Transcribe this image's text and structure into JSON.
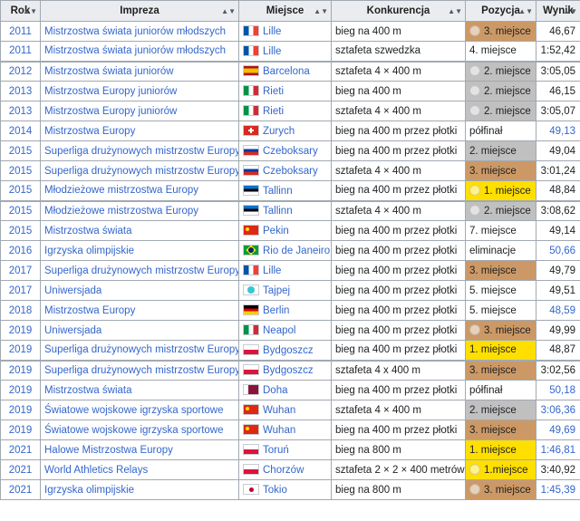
{
  "headers": [
    {
      "label": "Rok"
    },
    {
      "label": "Impreza"
    },
    {
      "label": "Miejsce"
    },
    {
      "label": "Konkurencja"
    },
    {
      "label": "Pozycja"
    },
    {
      "label": "Wynik"
    }
  ],
  "colors": {
    "gold": "#ffdf00",
    "silver": "#c0c0c0",
    "bronze": "#cc9966"
  },
  "rows": [
    {
      "year": "2011",
      "event": "Mistrzostwa świata juniorów młodszych",
      "flag": "f-fr",
      "flag_icon": "france-flag-icon",
      "place": "Lille",
      "competition": "bieg na 400 m",
      "position": "3. miejsce",
      "pos_class": "bronze",
      "medal": true,
      "medal_icon": "bronze-medal-icon",
      "result": "46,67",
      "result_link": false,
      "sep": false
    },
    {
      "year": "2011",
      "event": "Mistrzostwa świata juniorów młodszych",
      "flag": "f-fr",
      "flag_icon": "france-flag-icon",
      "place": "Lille",
      "competition": "sztafeta szwedzka",
      "position": "4. miejsce",
      "pos_class": "none",
      "medal": false,
      "result": "1:52,42",
      "result_link": false,
      "sep": false
    },
    {
      "year": "2012",
      "event": "Mistrzostwa świata juniorów",
      "flag": "f-es",
      "flag_icon": "spain-flag-icon",
      "place": "Barcelona",
      "competition": "sztafeta 4 × 400 m",
      "position": "2. miejsce",
      "pos_class": "silver",
      "medal": true,
      "medal_icon": "silver-medal-icon",
      "result": "3:05,05",
      "result_link": false,
      "sep": true
    },
    {
      "year": "2013",
      "event": "Mistrzostwa Europy juniorów",
      "flag": "f-it",
      "flag_icon": "italy-flag-icon",
      "place": "Rieti",
      "competition": "bieg na 400 m",
      "position": "2. miejsce",
      "pos_class": "silver",
      "medal": true,
      "medal_icon": "silver-medal-icon",
      "result": "46,15",
      "result_link": false,
      "sep": false
    },
    {
      "year": "2013",
      "event": "Mistrzostwa Europy juniorów",
      "flag": "f-it",
      "flag_icon": "italy-flag-icon",
      "place": "Rieti",
      "competition": "sztafeta 4 × 400 m",
      "position": "2. miejsce",
      "pos_class": "silver",
      "medal": true,
      "medal_icon": "silver-medal-icon",
      "result": "3:05,07",
      "result_link": false,
      "sep": false
    },
    {
      "year": "2014",
      "event": "Mistrzostwa Europy",
      "flag": "f-ch",
      "flag_icon": "switzerland-flag-icon",
      "place": "Zurych",
      "competition": "bieg na 400 m przez płotki",
      "position": "półfinał",
      "pos_class": "none",
      "medal": false,
      "result": "49,13",
      "result_link": true,
      "sep": false
    },
    {
      "year": "2015",
      "event": "Superliga drużynowych mistrzostw Europy",
      "flag": "f-ru",
      "flag_icon": "russia-flag-icon",
      "place": "Czeboksary",
      "competition": "bieg na 400 m przez płotki",
      "position": "2. miejsce",
      "pos_class": "silver",
      "medal": false,
      "result": "49,04",
      "result_link": false,
      "sep": false
    },
    {
      "year": "2015",
      "event": "Superliga drużynowych mistrzostw Europy",
      "flag": "f-ru",
      "flag_icon": "russia-flag-icon",
      "place": "Czeboksary",
      "competition": "sztafeta 4 × 400 m",
      "position": "3. miejsce",
      "pos_class": "bronze",
      "medal": false,
      "result": "3:01,24",
      "result_link": false,
      "sep": false
    },
    {
      "year": "2015",
      "event": "Młodzieżowe mistrzostwa Europy",
      "flag": "f-ee",
      "flag_icon": "estonia-flag-icon",
      "place": "Tallinn",
      "competition": "bieg na 400 m przez płotki",
      "position": "1. miejsce",
      "pos_class": "gold",
      "medal": true,
      "medal_icon": "gold-medal-icon",
      "result": "48,84",
      "result_link": false,
      "sep": false
    },
    {
      "year": "2015",
      "event": "Młodzieżowe mistrzostwa Europy",
      "flag": "f-ee",
      "flag_icon": "estonia-flag-icon",
      "place": "Tallinn",
      "competition": "sztafeta 4 × 400 m",
      "position": "2. miejsce",
      "pos_class": "silver",
      "medal": true,
      "medal_icon": "silver-medal-icon",
      "result": "3:08,62",
      "result_link": false,
      "sep": true
    },
    {
      "year": "2015",
      "event": "Mistrzostwa świata",
      "flag": "f-cn",
      "flag_icon": "china-flag-icon",
      "place": "Pekin",
      "competition": "bieg na 400 m przez płotki",
      "position": "7. miejsce",
      "pos_class": "none",
      "medal": false,
      "result": "49,14",
      "result_link": false,
      "sep": false
    },
    {
      "year": "2016",
      "event": "Igrzyska olimpijskie",
      "flag": "f-br",
      "flag_icon": "brazil-flag-icon",
      "place": "Rio de Janeiro",
      "competition": "bieg na 400 m przez płotki",
      "position": "eliminacje",
      "pos_class": "none",
      "medal": false,
      "result": "50,66",
      "result_link": true,
      "sep": false
    },
    {
      "year": "2017",
      "event": "Superliga drużynowych mistrzostw Europy",
      "flag": "f-fr",
      "flag_icon": "france-flag-icon",
      "place": "Lille",
      "competition": "bieg na 400 m przez płotki",
      "position": "3. miejsce",
      "pos_class": "bronze",
      "medal": false,
      "result": "49,79",
      "result_link": false,
      "sep": false
    },
    {
      "year": "2017",
      "event": "Uniwersjada",
      "flag": "f-tw",
      "flag_icon": "taipei-flag-icon",
      "place": "Tajpej",
      "competition": "bieg na 400 m przez płotki",
      "position": "5. miejsce",
      "pos_class": "none",
      "medal": false,
      "result": "49,51",
      "result_link": false,
      "sep": false
    },
    {
      "year": "2018",
      "event": "Mistrzostwa Europy",
      "flag": "f-de",
      "flag_icon": "germany-flag-icon",
      "place": "Berlin",
      "competition": "bieg na 400 m przez płotki",
      "position": "5. miejsce",
      "pos_class": "none",
      "medal": false,
      "result": "48,59",
      "result_link": true,
      "sep": false
    },
    {
      "year": "2019",
      "event": "Uniwersjada",
      "flag": "f-it",
      "flag_icon": "italy-flag-icon",
      "place": "Neapol",
      "competition": "bieg na 400 m przez płotki",
      "position": "3. miejsce",
      "pos_class": "bronze",
      "medal": true,
      "medal_icon": "bronze-medal-icon",
      "result": "49,99",
      "result_link": false,
      "sep": false
    },
    {
      "year": "2019",
      "event": "Superliga drużynowych mistrzostw Europy",
      "flag": "f-pl",
      "flag_icon": "poland-flag-icon",
      "place": "Bydgoszcz",
      "competition": "bieg na 400 m przez płotki",
      "position": "1. miejsce",
      "pos_class": "gold",
      "medal": false,
      "result": "48,87",
      "result_link": false,
      "sep": false
    },
    {
      "year": "2019",
      "event": "Superliga drużynowych mistrzostw Europy",
      "flag": "f-pl",
      "flag_icon": "poland-flag-icon",
      "place": "Bydgoszcz",
      "competition": "sztafeta 4 x 400 m",
      "position": "3. miejsce",
      "pos_class": "bronze",
      "medal": false,
      "result": "3:02,56",
      "result_link": false,
      "sep": true
    },
    {
      "year": "2019",
      "event": "Mistrzostwa świata",
      "flag": "f-qa",
      "flag_icon": "qatar-flag-icon",
      "place": "Doha",
      "competition": "bieg na 400 m przez płotki",
      "position": "półfinał",
      "pos_class": "none",
      "medal": false,
      "result": "50,18",
      "result_link": true,
      "sep": false
    },
    {
      "year": "2019",
      "event": "Światowe wojskowe igrzyska sportowe",
      "flag": "f-cn",
      "flag_icon": "china-flag-icon",
      "place": "Wuhan",
      "competition": "sztafeta 4 × 400 m",
      "position": "2. miejsce",
      "pos_class": "silver",
      "medal": false,
      "result": "3:06,36",
      "result_link": true,
      "sep": false
    },
    {
      "year": "2019",
      "event": "Światowe wojskowe igrzyska sportowe",
      "flag": "f-cn",
      "flag_icon": "china-flag-icon",
      "place": "Wuhan",
      "competition": "bieg na 400 m przez płotki",
      "position": "3. miejsce",
      "pos_class": "bronze",
      "medal": false,
      "result": "49,69",
      "result_link": true,
      "sep": false
    },
    {
      "year": "2021",
      "event": "Halowe Mistrzostwa Europy",
      "flag": "f-pl",
      "flag_icon": "poland-flag-icon",
      "place": "Toruń",
      "competition": "bieg na 800 m",
      "position": "1. miejsce",
      "pos_class": "gold",
      "medal": false,
      "result": "1:46,81",
      "result_link": true,
      "sep": false
    },
    {
      "year": "2021",
      "event": "World Athletics Relays",
      "flag": "f-pl",
      "flag_icon": "poland-flag-icon",
      "place": "Chorzów",
      "competition": "sztafeta 2 × 2 × 400 metrów",
      "position": "1.miejsce",
      "pos_class": "gold",
      "medal": true,
      "medal_icon": "gold-medal-icon",
      "result": "3:40,92",
      "result_link": false,
      "sep": false
    },
    {
      "year": "2021",
      "event": "Igrzyska olimpijskie",
      "flag": "f-jp",
      "flag_icon": "japan-flag-icon",
      "place": "Tokio",
      "competition": "bieg na 800 m",
      "position": "3. miejsce",
      "pos_class": "bronze",
      "medal": true,
      "medal_icon": "bronze-medal-icon",
      "result": "1:45,39",
      "result_link": true,
      "sep": false
    }
  ]
}
